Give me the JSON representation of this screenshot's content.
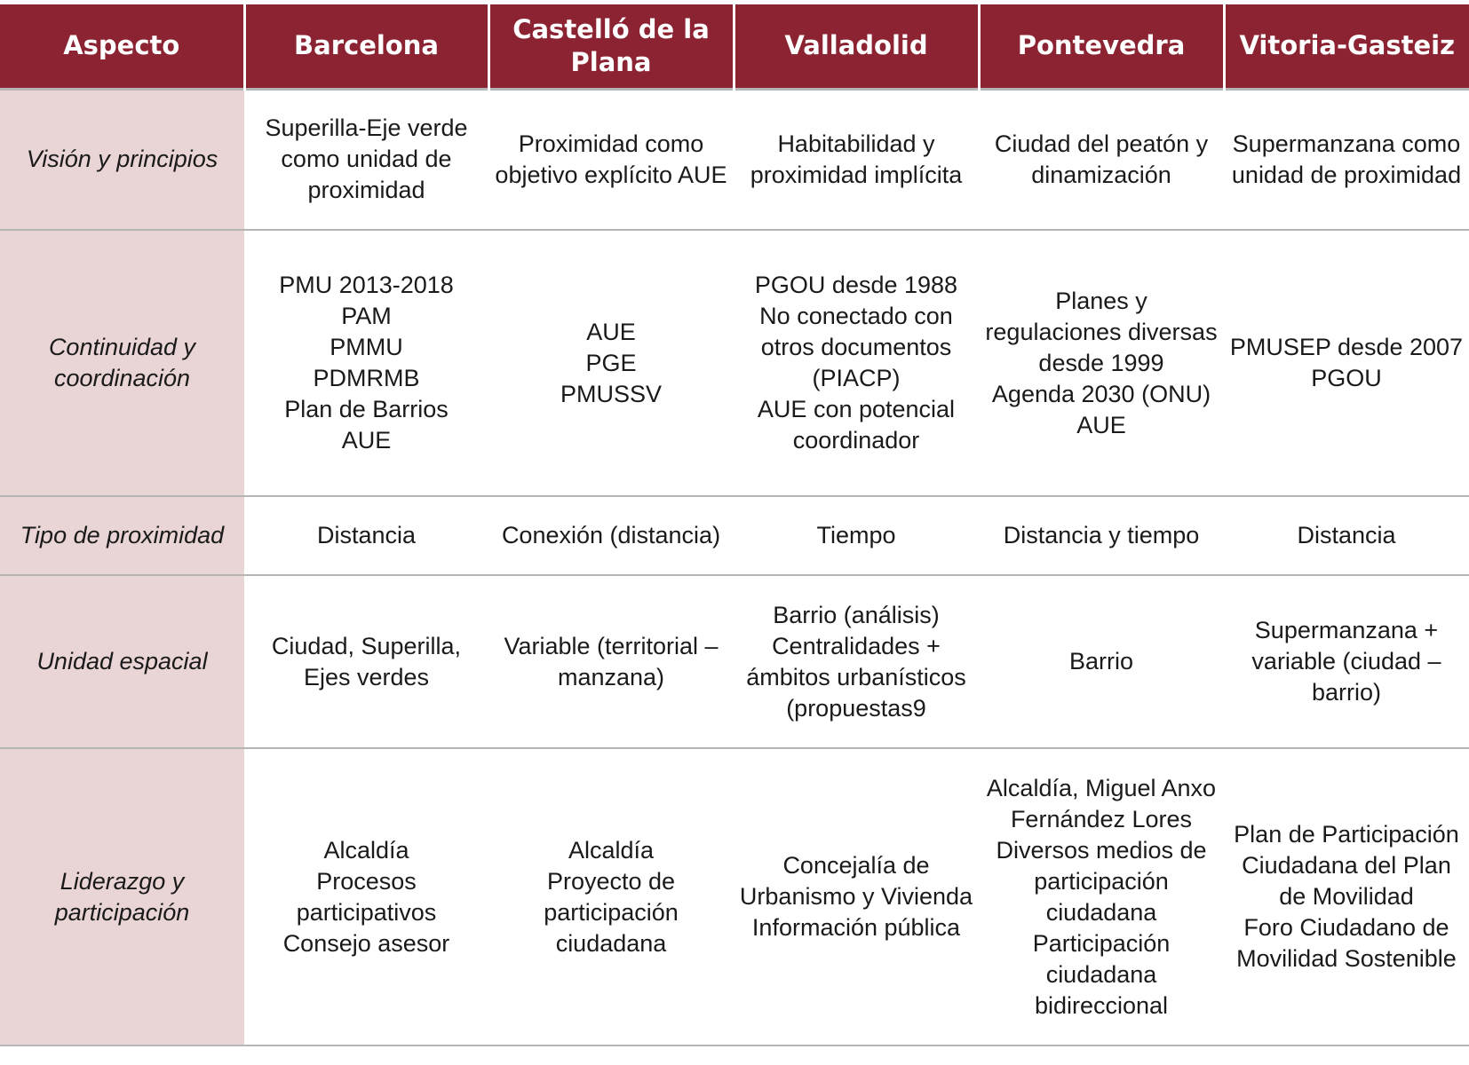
{
  "header": {
    "aspect": "Aspecto",
    "cities": [
      "Barcelona",
      "Castelló de la Plana",
      "Valladolid",
      "Pontevedra",
      "Vitoria-Gasteiz"
    ]
  },
  "rows": [
    {
      "aspect": "Visión y principios",
      "values": [
        "Superilla-Eje verde como unidad de proximidad",
        "Proximidad como objetivo explícito AUE",
        "Habitabilidad y proximidad implícita",
        "Ciudad del peatón y dinamización",
        "Supermanzana como unidad de proximidad"
      ]
    },
    {
      "aspect": "Continuidad y coordinación",
      "values": [
        "PMU 2013-2018\nPAM\nPMMU\nPDMRMB\nPlan de Barrios\nAUE",
        "AUE\nPGE\nPMUSSV",
        "PGOU desde 1988\nNo conectado con otros documentos (PIACP)\nAUE con potencial coordinador",
        "Planes y regulaciones diversas desde 1999\nAgenda 2030 (ONU)\nAUE",
        "PMUSEP desde 2007\nPGOU"
      ]
    },
    {
      "aspect": "Tipo de proximidad",
      "values": [
        "Distancia",
        "Conexión (distancia)",
        "Tiempo",
        "Distancia y tiempo",
        "Distancia"
      ]
    },
    {
      "aspect": "Unidad espacial",
      "values": [
        "Ciudad, Superilla, Ejes verdes",
        "Variable (territorial – manzana)",
        "Barrio (análisis)\nCentralidades + ámbitos urbanísticos (propuestas9",
        "Barrio",
        "Supermanzana + variable (ciudad – barrio)"
      ]
    },
    {
      "aspect": "Liderazgo y participación",
      "values": [
        "Alcaldía\nProcesos participativos\nConsejo asesor",
        "Alcaldía\nProyecto de participación ciudadana",
        "Concejalía de Urbanismo y Vivienda\nInformación pública",
        "Alcaldía, Miguel Anxo Fernández Lores\nDiversos medios de participación ciudadana\nParticipación ciudadana bidireccional",
        "Plan de Participación Ciudadana del Plan de Movilidad\nForo Ciudadano de Movilidad Sostenible"
      ]
    }
  ]
}
